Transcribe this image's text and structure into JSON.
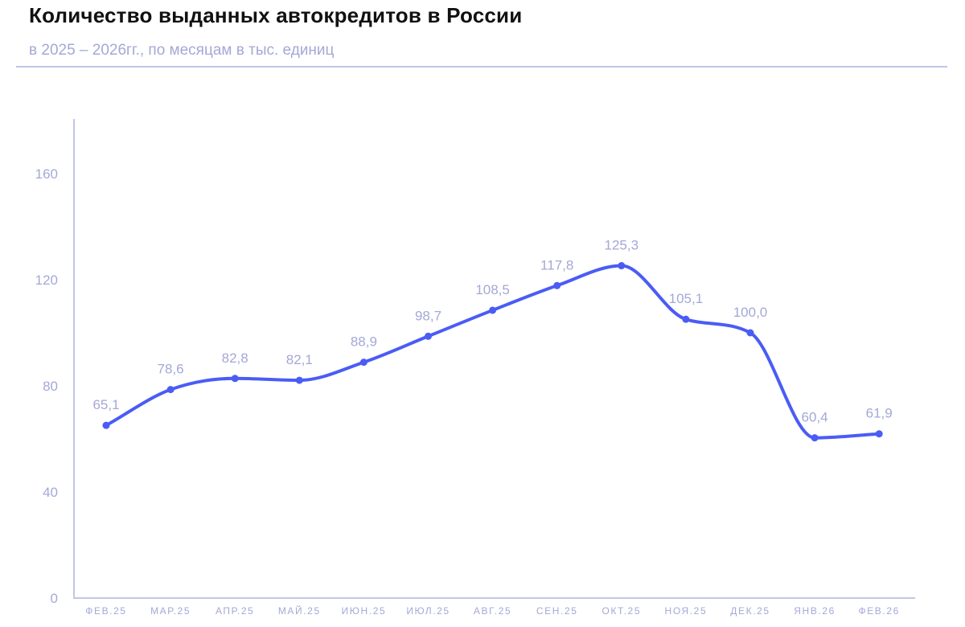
{
  "header": {
    "title": "Количество выданных автокредитов в России",
    "subtitle": "в 2025 – 2026гг., по месяцам в тыс. единиц"
  },
  "colors": {
    "line": "#4a5cf5",
    "axis": "#c3c6e6",
    "labels": "#a4a8d6"
  },
  "chart_data": {
    "type": "line",
    "title": "Количество выданных автокредитов в России",
    "subtitle": "в 2025 – 2026гг., по месяцам в тыс. единиц",
    "xlabel": "",
    "ylabel": "",
    "categories": [
      "ФЕВ.25",
      "МАР.25",
      "АПР.25",
      "МАЙ.25",
      "ИЮН.25",
      "ИЮЛ.25",
      "АВГ.25",
      "СЕН.25",
      "ОКТ.25",
      "НОЯ.25",
      "ДЕК.25",
      "ЯНВ.26",
      "ФЕВ.26"
    ],
    "values": [
      65.1,
      78.6,
      82.8,
      82.1,
      88.9,
      98.7,
      108.5,
      117.8,
      125.3,
      105.1,
      100.0,
      60.4,
      61.9
    ],
    "value_labels": [
      "65,1",
      "78,6",
      "82,8",
      "82,1",
      "88,9",
      "98,7",
      "108,5",
      "117,8",
      "125,3",
      "105,1",
      "100,0",
      "60,4",
      "61,9"
    ],
    "yticks": [
      0,
      40,
      80,
      120,
      160
    ],
    "ylim": [
      0,
      180
    ],
    "grid": false,
    "smooth": true,
    "legend": null
  }
}
